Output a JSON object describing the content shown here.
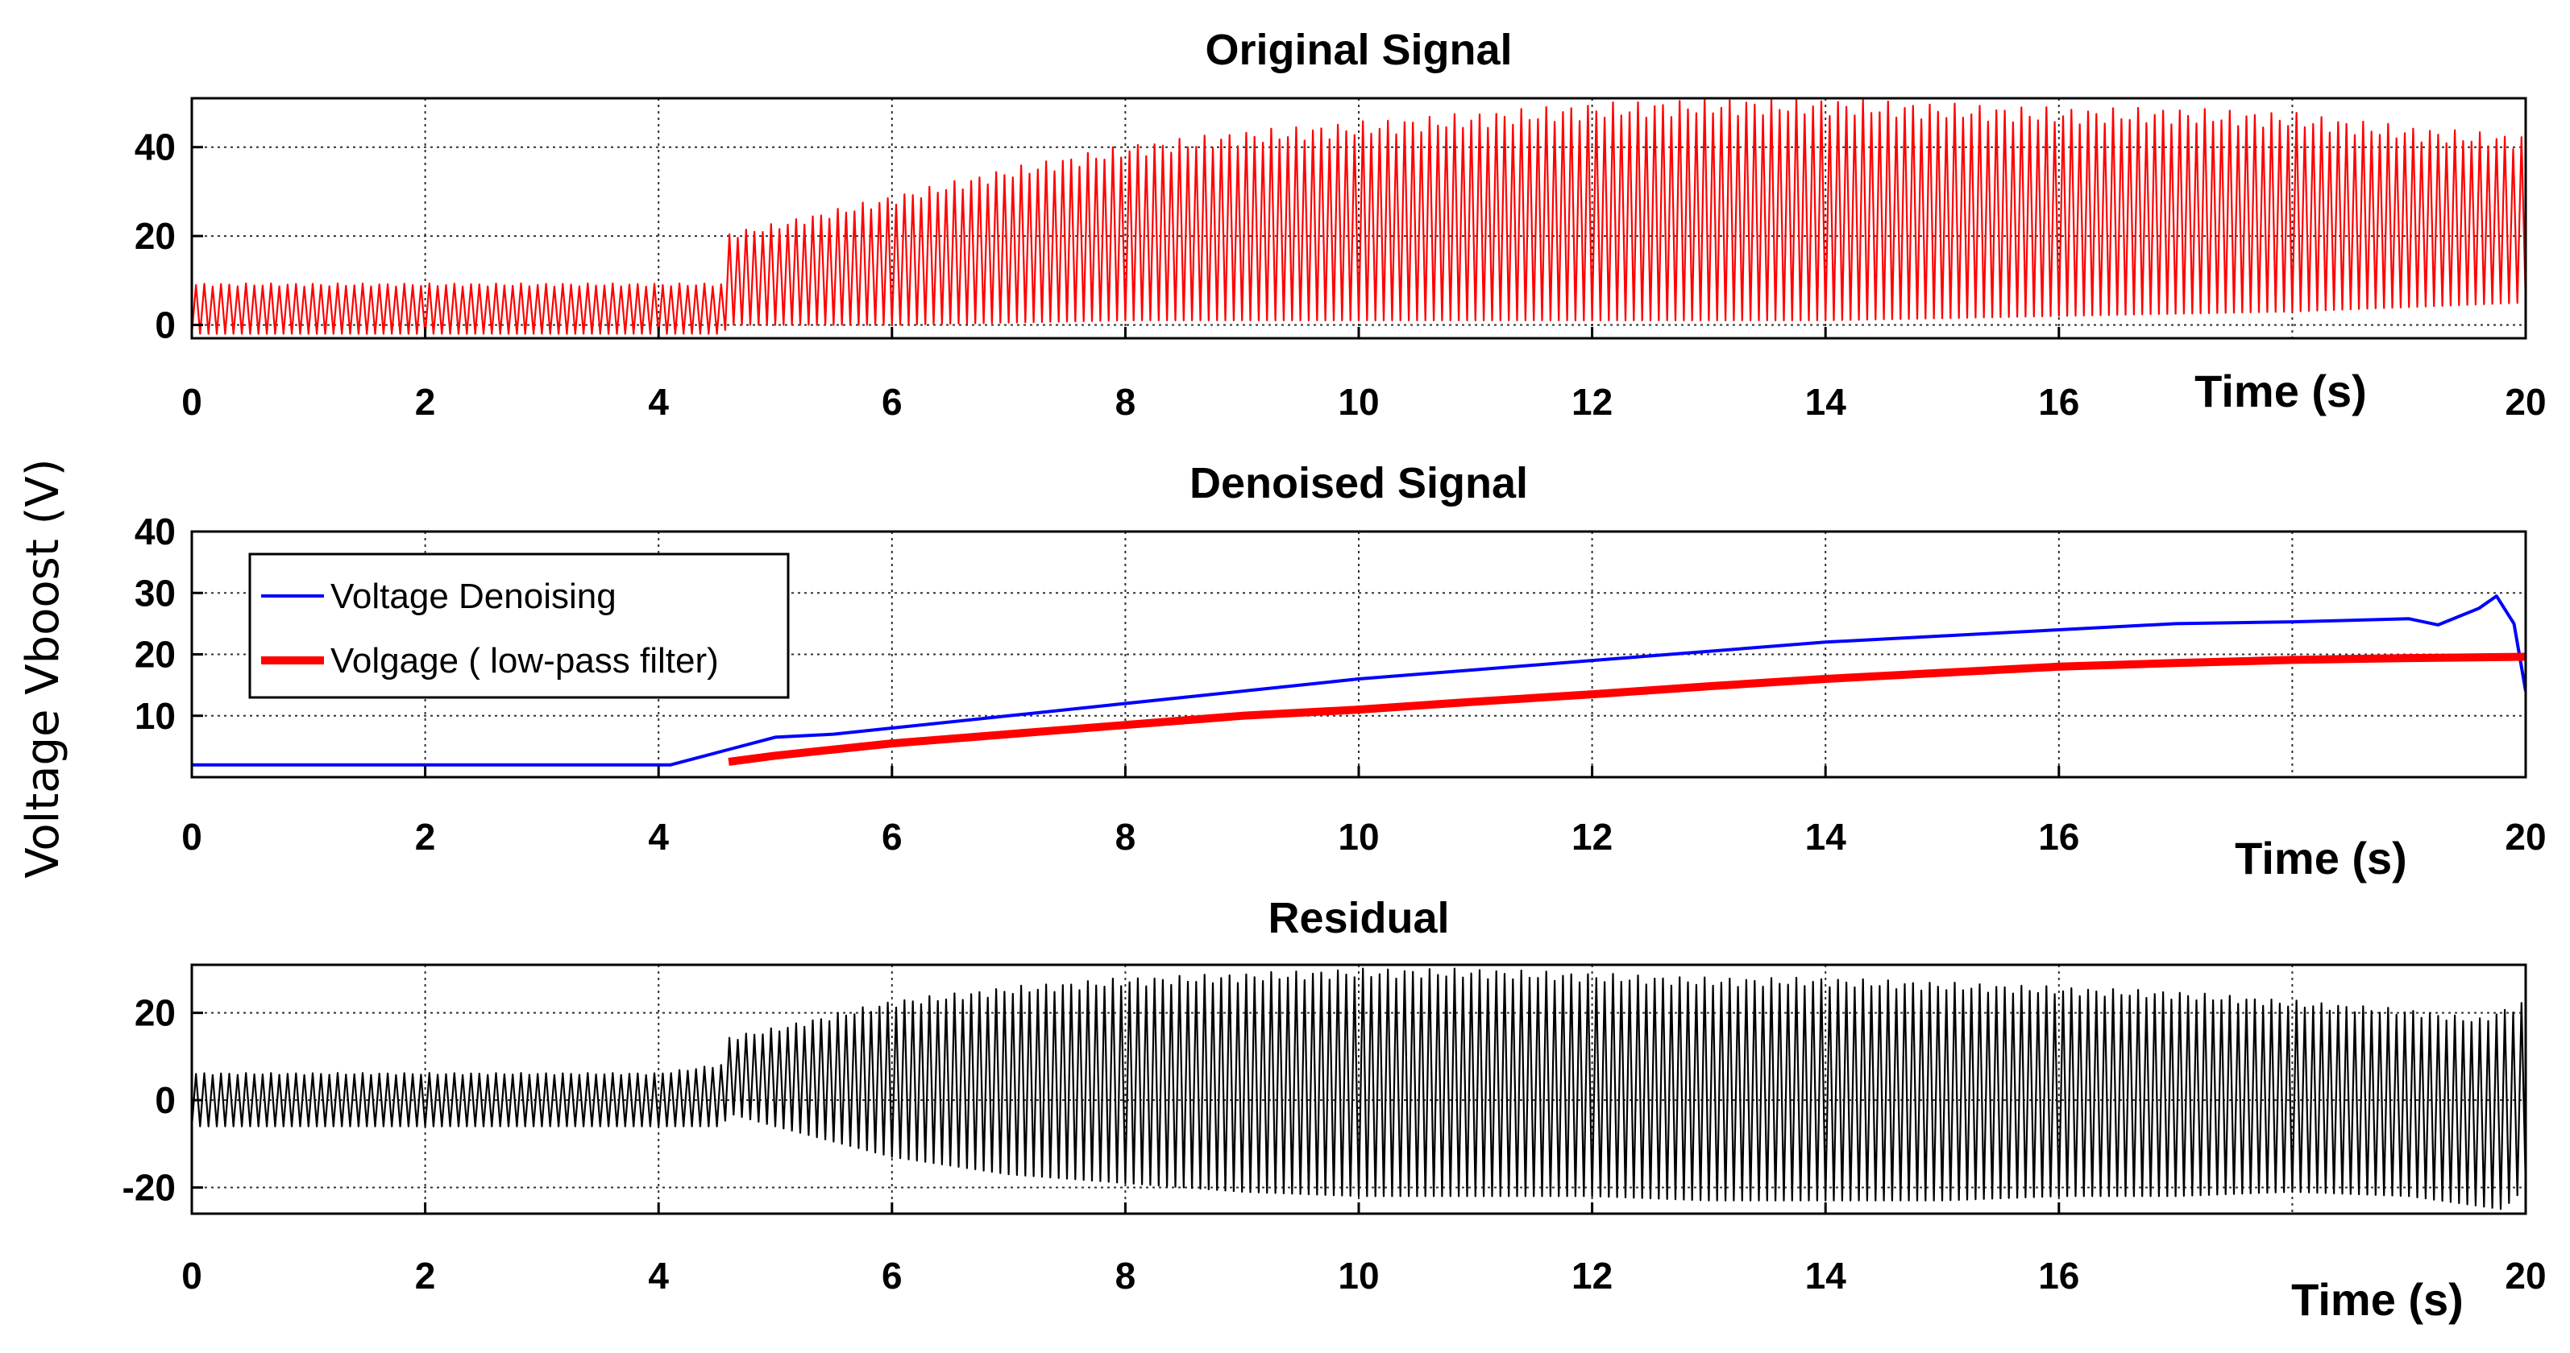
{
  "figure": {
    "ylabel": "Voltage Vboost (V)"
  },
  "chart_data": [
    {
      "type": "line",
      "title": "Original Signal",
      "xlabel": "Time (s)",
      "ylabel": "Voltage Vboost (V)",
      "xlim": [
        0,
        20
      ],
      "ylim": [
        -3,
        51
      ],
      "xticks": [
        0,
        2,
        4,
        6,
        8,
        10,
        12,
        14,
        16,
        20
      ],
      "yticks": [
        0,
        20,
        40
      ],
      "grid": true,
      "series": [
        {
          "color": "#ff0000",
          "kind": "oscillating",
          "cycles_per_second": 14,
          "upper_envelope": [
            [
              0,
              9
            ],
            [
              4,
              9
            ],
            [
              4.55,
              9
            ],
            [
              4.6,
              20
            ],
            [
              5,
              22
            ],
            [
              6,
              28
            ],
            [
              7,
              34
            ],
            [
              8,
              39
            ],
            [
              9,
              42
            ],
            [
              10,
              44
            ],
            [
              11,
              46
            ],
            [
              12,
              48
            ],
            [
              13,
              49
            ],
            [
              14,
              49
            ],
            [
              15,
              48
            ],
            [
              16,
              47
            ],
            [
              17,
              47
            ],
            [
              18,
              46
            ],
            [
              19,
              43
            ],
            [
              20,
              41
            ]
          ],
          "lower_envelope": [
            [
              0,
              -2
            ],
            [
              4,
              -2
            ],
            [
              4.55,
              -2
            ],
            [
              4.6,
              0
            ],
            [
              6,
              0
            ],
            [
              8,
              1
            ],
            [
              10,
              1
            ],
            [
              12,
              1
            ],
            [
              14,
              1
            ],
            [
              16,
              2
            ],
            [
              18,
              3
            ],
            [
              19,
              4
            ],
            [
              20,
              5
            ]
          ]
        }
      ]
    },
    {
      "type": "line",
      "title": "Denoised Signal",
      "xlabel": "Time (s)",
      "ylabel": "",
      "xlim": [
        0,
        20
      ],
      "ylim": [
        0,
        40
      ],
      "xticks": [
        0,
        2,
        4,
        6,
        8,
        10,
        12,
        14,
        16,
        20
      ],
      "yticks": [
        10,
        20,
        30,
        40
      ],
      "grid": true,
      "legend_position": "top-left",
      "series": [
        {
          "name": "Voltage Denoising",
          "color": "#0000ff",
          "x": [
            0,
            4,
            4.1,
            4.5,
            5,
            5.5,
            6,
            7,
            8,
            9,
            10,
            11,
            12,
            13,
            14,
            15,
            16,
            17,
            18,
            19,
            19.25,
            19.6,
            19.75,
            19.9,
            20
          ],
          "y": [
            2,
            2,
            2,
            4,
            6.5,
            7,
            8,
            10,
            12,
            14,
            16,
            17.5,
            19,
            20.5,
            22,
            23,
            24,
            25,
            25.3,
            25.8,
            24.8,
            27.5,
            29.5,
            25,
            14
          ]
        },
        {
          "name": "Volgage ( low-pass filter)",
          "color": "#ff0000",
          "x": [
            4.6,
            5,
            6,
            7,
            8,
            9,
            10,
            11,
            12,
            13,
            14,
            15,
            16,
            17,
            18,
            19,
            20
          ],
          "y": [
            2.5,
            3.5,
            5.5,
            7,
            8.5,
            10,
            11,
            12.3,
            13.5,
            14.8,
            16,
            17,
            18,
            18.6,
            19.1,
            19.4,
            19.6
          ]
        }
      ]
    },
    {
      "type": "line",
      "title": "Residual",
      "xlabel": "Time (s)",
      "ylabel": "",
      "xlim": [
        0,
        20
      ],
      "ylim": [
        -26,
        31
      ],
      "xticks": [
        0,
        2,
        4,
        6,
        8,
        10,
        12,
        14,
        16,
        20
      ],
      "yticks": [
        -20,
        0,
        20
      ],
      "grid": true,
      "series": [
        {
          "color": "#000000",
          "kind": "oscillating",
          "cycles_per_second": 14,
          "upper_envelope": [
            [
              0,
              6
            ],
            [
              4,
              6
            ],
            [
              4.55,
              8
            ],
            [
              4.6,
              14
            ],
            [
              5,
              16
            ],
            [
              6,
              22
            ],
            [
              7,
              25
            ],
            [
              8,
              27
            ],
            [
              9,
              28
            ],
            [
              10,
              29
            ],
            [
              11,
              29
            ],
            [
              12,
              28
            ],
            [
              13,
              27
            ],
            [
              14,
              27
            ],
            [
              15,
              26
            ],
            [
              16,
              25
            ],
            [
              17,
              24
            ],
            [
              18,
              22
            ],
            [
              19,
              20
            ],
            [
              19.6,
              18
            ],
            [
              20,
              22
            ]
          ],
          "lower_envelope": [
            [
              0,
              -6
            ],
            [
              4,
              -6
            ],
            [
              4.55,
              -6
            ],
            [
              4.6,
              -3
            ],
            [
              5,
              -6
            ],
            [
              6,
              -13
            ],
            [
              7,
              -17
            ],
            [
              8,
              -19
            ],
            [
              9,
              -21
            ],
            [
              10,
              -22
            ],
            [
              11,
              -22
            ],
            [
              12,
              -22
            ],
            [
              13,
              -23
            ],
            [
              14,
              -23
            ],
            [
              15,
              -23
            ],
            [
              16,
              -22
            ],
            [
              17,
              -22
            ],
            [
              18,
              -21
            ],
            [
              19,
              -22
            ],
            [
              19.8,
              -25
            ],
            [
              20,
              -20
            ]
          ]
        }
      ]
    }
  ]
}
